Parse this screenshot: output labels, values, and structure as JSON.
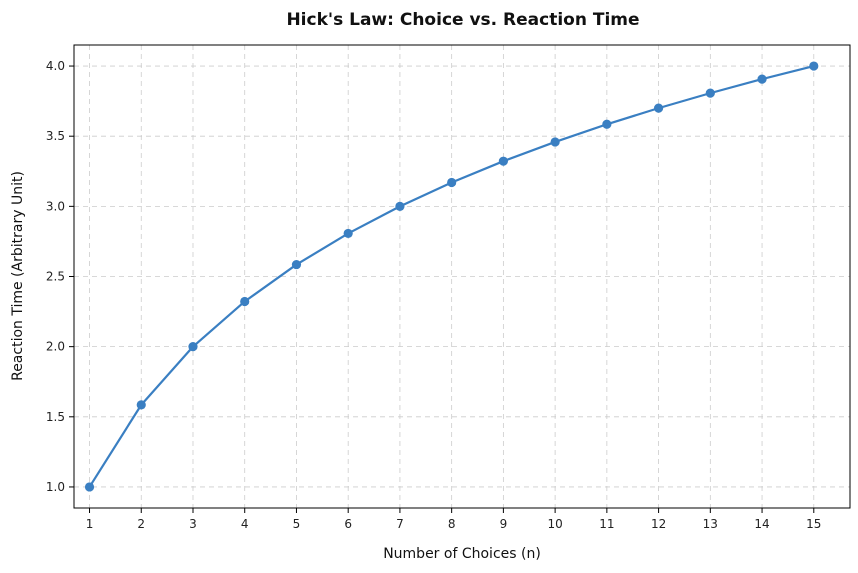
{
  "chart_data": {
    "type": "line",
    "title": "Hick's Law: Choice vs. Reaction Time",
    "xlabel": "Number of Choices (n)",
    "ylabel": "Reaction Time (Arbitrary Unit)",
    "x": [
      1,
      2,
      3,
      4,
      5,
      6,
      7,
      8,
      9,
      10,
      11,
      12,
      13,
      14,
      15
    ],
    "series": [
      {
        "values": [
          1.0,
          1.585,
          2.0,
          2.322,
          2.585,
          2.807,
          3.0,
          3.17,
          3.322,
          3.459,
          3.585,
          3.7,
          3.807,
          3.907,
          4.0
        ],
        "color": "#3a7fc2",
        "marker": "circle"
      }
    ],
    "xlim": [
      0.7,
      15.7
    ],
    "ylim": [
      0.85,
      4.15
    ],
    "xticks": [
      1,
      2,
      3,
      4,
      5,
      6,
      7,
      8,
      9,
      10,
      11,
      12,
      13,
      14,
      15
    ],
    "yticks": [
      1.0,
      1.5,
      2.0,
      2.5,
      3.0,
      3.5,
      4.0
    ],
    "ytick_labels": [
      "1.0",
      "1.5",
      "2.0",
      "2.5",
      "3.0",
      "3.5",
      "4.0"
    ],
    "grid": true,
    "legend": "none"
  }
}
